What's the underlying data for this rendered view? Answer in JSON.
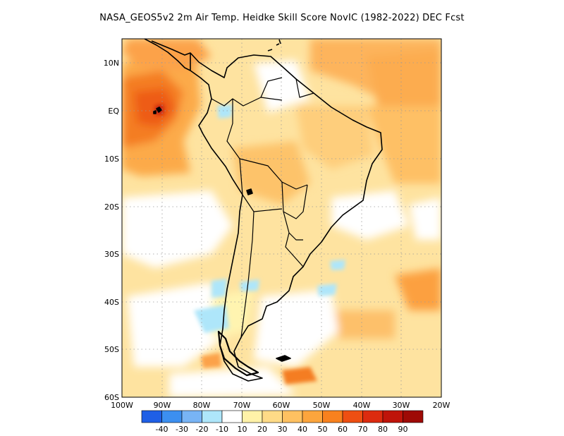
{
  "title": "NASA_GEOS5v2  2m Air Temp. Heidke Skill Score NovIC (1982-2022) DEC Fcst",
  "lat_ticks": [
    "10N",
    "EQ",
    "10S",
    "20S",
    "30S",
    "40S",
    "50S",
    "60S"
  ],
  "lon_ticks": [
    "100W",
    "90W",
    "80W",
    "70W",
    "60W",
    "50W",
    "40W",
    "30W",
    "20W"
  ],
  "map_extent": {
    "lon": [
      -100,
      -20
    ],
    "lat": [
      -60,
      15
    ]
  },
  "colorbar": {
    "labels": [
      "-40",
      "-30",
      "-20",
      "-10",
      "10",
      "20",
      "30",
      "40",
      "50",
      "60",
      "70",
      "80",
      "90"
    ],
    "colors": [
      "#1f5fe6",
      "#3c8ff0",
      "#78b4f5",
      "#aee6fa",
      "#ffffff",
      "#fff2a8",
      "#fedb87",
      "#fec161",
      "#fca53d",
      "#f8811e",
      "#ee4f12",
      "#dc2b0f",
      "#bf140a",
      "#9e0a05"
    ]
  }
}
